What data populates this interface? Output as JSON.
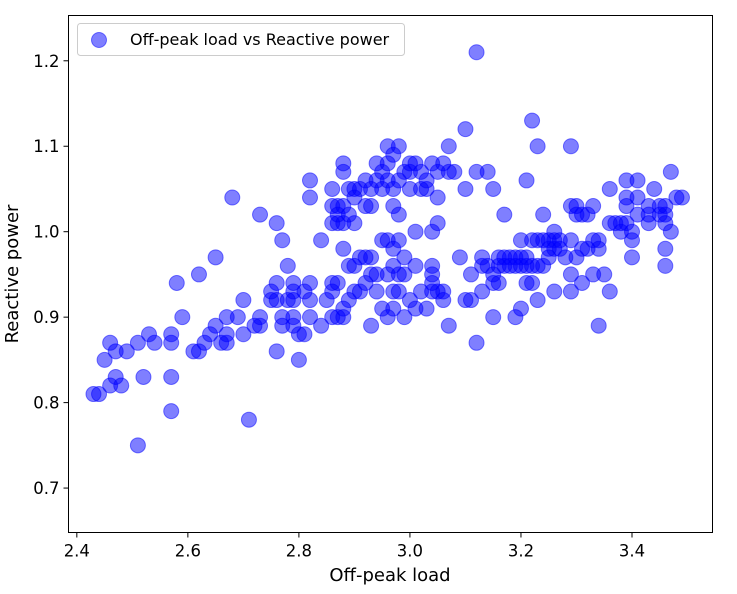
{
  "chart_data": {
    "type": "scatter",
    "title": "",
    "xlabel": "Off-peak load",
    "ylabel": "Reactive power",
    "xlim": [
      2.385,
      3.545
    ],
    "ylim": [
      0.648,
      1.253
    ],
    "x_ticks": [
      2.4,
      2.6,
      2.8,
      3.0,
      3.2,
      3.4
    ],
    "x_tick_labels": [
      "2.4",
      "2.6",
      "2.8",
      "3.0",
      "3.2",
      "3.4"
    ],
    "y_ticks": [
      0.7,
      0.8,
      0.9,
      1.0,
      1.1,
      1.2
    ],
    "y_tick_labels": [
      "0.7",
      "0.8",
      "0.9",
      "1.0",
      "1.1",
      "1.2"
    ],
    "grid": false,
    "legend_position": "top-left",
    "series": [
      {
        "name": "Off-peak load vs Reactive power",
        "color": "#0000ff",
        "points": [
          [
            2.43,
            0.81
          ],
          [
            2.44,
            0.81
          ],
          [
            2.45,
            0.85
          ],
          [
            2.46,
            0.87
          ],
          [
            2.46,
            0.82
          ],
          [
            2.47,
            0.83
          ],
          [
            2.47,
            0.86
          ],
          [
            2.48,
            0.82
          ],
          [
            2.49,
            0.86
          ],
          [
            2.51,
            0.87
          ],
          [
            2.51,
            0.75
          ],
          [
            2.52,
            0.83
          ],
          [
            2.53,
            0.88
          ],
          [
            2.54,
            0.87
          ],
          [
            2.57,
            0.88
          ],
          [
            2.57,
            0.87
          ],
          [
            2.57,
            0.83
          ],
          [
            2.57,
            0.79
          ],
          [
            2.58,
            0.94
          ],
          [
            2.59,
            0.9
          ],
          [
            2.61,
            0.86
          ],
          [
            2.62,
            0.95
          ],
          [
            2.62,
            0.86
          ],
          [
            2.63,
            0.87
          ],
          [
            2.64,
            0.88
          ],
          [
            2.65,
            0.97
          ],
          [
            2.65,
            0.89
          ],
          [
            2.66,
            0.87
          ],
          [
            2.67,
            0.9
          ],
          [
            2.67,
            0.87
          ],
          [
            2.67,
            0.88
          ],
          [
            2.68,
            1.04
          ],
          [
            2.69,
            0.9
          ],
          [
            2.7,
            0.92
          ],
          [
            2.7,
            0.88
          ],
          [
            2.71,
            0.78
          ],
          [
            2.72,
            0.89
          ],
          [
            2.73,
            1.02
          ],
          [
            2.73,
            0.9
          ],
          [
            2.73,
            0.89
          ],
          [
            2.75,
            0.93
          ],
          [
            2.75,
            0.92
          ],
          [
            2.76,
            1.01
          ],
          [
            2.76,
            0.94
          ],
          [
            2.76,
            0.92
          ],
          [
            2.76,
            0.86
          ],
          [
            2.77,
            0.99
          ],
          [
            2.77,
            0.9
          ],
          [
            2.77,
            0.89
          ],
          [
            2.78,
            0.96
          ],
          [
            2.78,
            0.92
          ],
          [
            2.79,
            0.93
          ],
          [
            2.79,
            0.94
          ],
          [
            2.79,
            0.92
          ],
          [
            2.79,
            0.9
          ],
          [
            2.79,
            0.89
          ],
          [
            2.8,
            0.88
          ],
          [
            2.8,
            0.85
          ],
          [
            2.81,
            0.93
          ],
          [
            2.81,
            0.88
          ],
          [
            2.82,
            1.06
          ],
          [
            2.82,
            1.04
          ],
          [
            2.82,
            0.94
          ],
          [
            2.82,
            0.92
          ],
          [
            2.82,
            0.9
          ],
          [
            2.84,
            0.99
          ],
          [
            2.84,
            0.89
          ],
          [
            2.85,
            0.92
          ],
          [
            2.86,
            1.05
          ],
          [
            2.86,
            1.03
          ],
          [
            2.86,
            0.93
          ],
          [
            2.86,
            0.94
          ],
          [
            2.86,
            0.9
          ],
          [
            2.86,
            1.01
          ],
          [
            2.87,
            1.03
          ],
          [
            2.87,
            1.02
          ],
          [
            2.87,
            1.01
          ],
          [
            2.87,
            0.94
          ],
          [
            2.87,
            0.9
          ],
          [
            2.88,
            1.08
          ],
          [
            2.88,
            1.07
          ],
          [
            2.88,
            1.03
          ],
          [
            2.88,
            1.01
          ],
          [
            2.88,
            0.98
          ],
          [
            2.88,
            0.91
          ],
          [
            2.88,
            0.9
          ],
          [
            2.89,
            1.05
          ],
          [
            2.89,
            1.02
          ],
          [
            2.89,
            0.96
          ],
          [
            2.89,
            0.92
          ],
          [
            2.9,
            1.05
          ],
          [
            2.9,
            1.04
          ],
          [
            2.9,
            1.01
          ],
          [
            2.9,
            0.96
          ],
          [
            2.9,
            0.93
          ],
          [
            2.91,
            1.05
          ],
          [
            2.91,
            0.97
          ],
          [
            2.91,
            0.93
          ],
          [
            2.92,
            1.06
          ],
          [
            2.92,
            1.03
          ],
          [
            2.92,
            0.97
          ],
          [
            2.92,
            0.94
          ],
          [
            2.93,
            1.05
          ],
          [
            2.93,
            1.03
          ],
          [
            2.93,
            0.97
          ],
          [
            2.93,
            0.95
          ],
          [
            2.93,
            0.89
          ],
          [
            2.94,
            1.08
          ],
          [
            2.94,
            1.06
          ],
          [
            2.94,
            0.95
          ],
          [
            2.94,
            0.93
          ],
          [
            2.95,
            1.07
          ],
          [
            2.95,
            1.05
          ],
          [
            2.95,
            0.99
          ],
          [
            2.95,
            0.91
          ],
          [
            2.96,
            1.1
          ],
          [
            2.96,
            1.08
          ],
          [
            2.96,
            1.06
          ],
          [
            2.96,
            0.99
          ],
          [
            2.96,
            0.95
          ],
          [
            2.96,
            0.9
          ],
          [
            2.97,
            1.09
          ],
          [
            2.97,
            1.05
          ],
          [
            2.97,
            1.03
          ],
          [
            2.97,
            0.98
          ],
          [
            2.97,
            0.96
          ],
          [
            2.97,
            0.93
          ],
          [
            2.97,
            0.91
          ],
          [
            2.98,
            1.1
          ],
          [
            2.98,
            1.06
          ],
          [
            2.98,
            1.02
          ],
          [
            2.98,
            0.99
          ],
          [
            2.98,
            0.95
          ],
          [
            2.98,
            0.93
          ],
          [
            2.99,
            1.07
          ],
          [
            2.99,
            0.97
          ],
          [
            2.99,
            0.95
          ],
          [
            2.99,
            0.9
          ],
          [
            3.0,
            1.08
          ],
          [
            3.0,
            1.07
          ],
          [
            3.0,
            1.05
          ],
          [
            3.0,
            0.92
          ],
          [
            3.01,
            1.08
          ],
          [
            3.01,
            1.0
          ],
          [
            3.01,
            0.96
          ],
          [
            3.01,
            0.91
          ],
          [
            3.02,
            1.07
          ],
          [
            3.02,
            1.05
          ],
          [
            3.02,
            0.93
          ],
          [
            3.03,
            1.06
          ],
          [
            3.03,
            1.05
          ],
          [
            3.03,
            0.91
          ],
          [
            3.04,
            1.08
          ],
          [
            3.04,
            1.0
          ],
          [
            3.04,
            0.96
          ],
          [
            3.04,
            0.95
          ],
          [
            3.04,
            0.94
          ],
          [
            3.04,
            0.93
          ],
          [
            3.05,
            1.07
          ],
          [
            3.05,
            1.04
          ],
          [
            3.05,
            1.01
          ],
          [
            3.05,
            0.93
          ],
          [
            3.06,
            1.08
          ],
          [
            3.06,
            0.93
          ],
          [
            3.06,
            0.92
          ],
          [
            3.07,
            1.1
          ],
          [
            3.07,
            1.07
          ],
          [
            3.07,
            0.89
          ],
          [
            3.08,
            1.07
          ],
          [
            3.09,
            0.97
          ],
          [
            3.1,
            1.12
          ],
          [
            3.1,
            1.05
          ],
          [
            3.1,
            0.92
          ],
          [
            3.11,
            0.95
          ],
          [
            3.11,
            0.92
          ],
          [
            3.12,
            1.21
          ],
          [
            3.12,
            1.07
          ],
          [
            3.12,
            0.87
          ],
          [
            3.13,
            0.97
          ],
          [
            3.13,
            0.96
          ],
          [
            3.13,
            0.93
          ],
          [
            3.14,
            1.07
          ],
          [
            3.14,
            0.96
          ],
          [
            3.15,
            1.05
          ],
          [
            3.15,
            0.95
          ],
          [
            3.15,
            0.94
          ],
          [
            3.15,
            0.9
          ],
          [
            3.16,
            0.97
          ],
          [
            3.16,
            0.96
          ],
          [
            3.16,
            0.94
          ],
          [
            3.17,
            1.02
          ],
          [
            3.17,
            0.97
          ],
          [
            3.17,
            0.96
          ],
          [
            3.18,
            0.97
          ],
          [
            3.18,
            0.96
          ],
          [
            3.19,
            0.97
          ],
          [
            3.19,
            0.96
          ],
          [
            3.19,
            0.9
          ],
          [
            3.2,
            0.99
          ],
          [
            3.2,
            0.97
          ],
          [
            3.2,
            0.96
          ],
          [
            3.2,
            0.91
          ],
          [
            3.21,
            1.06
          ],
          [
            3.21,
            0.97
          ],
          [
            3.21,
            0.96
          ],
          [
            3.21,
            0.94
          ],
          [
            3.22,
            1.13
          ],
          [
            3.22,
            0.99
          ],
          [
            3.22,
            0.96
          ],
          [
            3.22,
            0.94
          ],
          [
            3.23,
            1.1
          ],
          [
            3.23,
            0.99
          ],
          [
            3.23,
            0.96
          ],
          [
            3.23,
            0.92
          ],
          [
            3.24,
            1.02
          ],
          [
            3.24,
            0.99
          ],
          [
            3.24,
            0.96
          ],
          [
            3.25,
            0.99
          ],
          [
            3.25,
            0.98
          ],
          [
            3.25,
            0.97
          ],
          [
            3.26,
            1.0
          ],
          [
            3.26,
            0.99
          ],
          [
            3.26,
            0.98
          ],
          [
            3.26,
            0.93
          ],
          [
            3.27,
            0.99
          ],
          [
            3.27,
            0.98
          ],
          [
            3.28,
            0.97
          ],
          [
            3.29,
            1.1
          ],
          [
            3.29,
            1.03
          ],
          [
            3.29,
            0.99
          ],
          [
            3.29,
            0.95
          ],
          [
            3.29,
            0.93
          ],
          [
            3.3,
            1.03
          ],
          [
            3.3,
            1.02
          ],
          [
            3.3,
            0.97
          ],
          [
            3.31,
            1.02
          ],
          [
            3.31,
            0.98
          ],
          [
            3.31,
            0.94
          ],
          [
            3.32,
            1.02
          ],
          [
            3.32,
            0.98
          ],
          [
            3.33,
            1.03
          ],
          [
            3.33,
            0.99
          ],
          [
            3.33,
            0.95
          ],
          [
            3.34,
            0.99
          ],
          [
            3.34,
            0.98
          ],
          [
            3.34,
            0.89
          ],
          [
            3.35,
            0.95
          ],
          [
            3.36,
            1.05
          ],
          [
            3.36,
            1.01
          ],
          [
            3.36,
            0.93
          ],
          [
            3.37,
            1.01
          ],
          [
            3.38,
            1.01
          ],
          [
            3.38,
            1.0
          ],
          [
            3.39,
            1.06
          ],
          [
            3.39,
            1.04
          ],
          [
            3.39,
            1.03
          ],
          [
            3.39,
            1.01
          ],
          [
            3.4,
            1.0
          ],
          [
            3.4,
            0.99
          ],
          [
            3.4,
            0.97
          ],
          [
            3.41,
            1.06
          ],
          [
            3.41,
            1.04
          ],
          [
            3.41,
            1.02
          ],
          [
            3.43,
            1.03
          ],
          [
            3.43,
            1.02
          ],
          [
            3.43,
            1.01
          ],
          [
            3.44,
            1.05
          ],
          [
            3.45,
            1.03
          ],
          [
            3.45,
            1.02
          ],
          [
            3.46,
            1.03
          ],
          [
            3.46,
            1.02
          ],
          [
            3.46,
            1.01
          ],
          [
            3.46,
            0.98
          ],
          [
            3.46,
            0.96
          ],
          [
            3.47,
            1.07
          ],
          [
            3.47,
            1.0
          ],
          [
            3.48,
            1.04
          ],
          [
            3.49,
            1.04
          ]
        ]
      }
    ]
  }
}
